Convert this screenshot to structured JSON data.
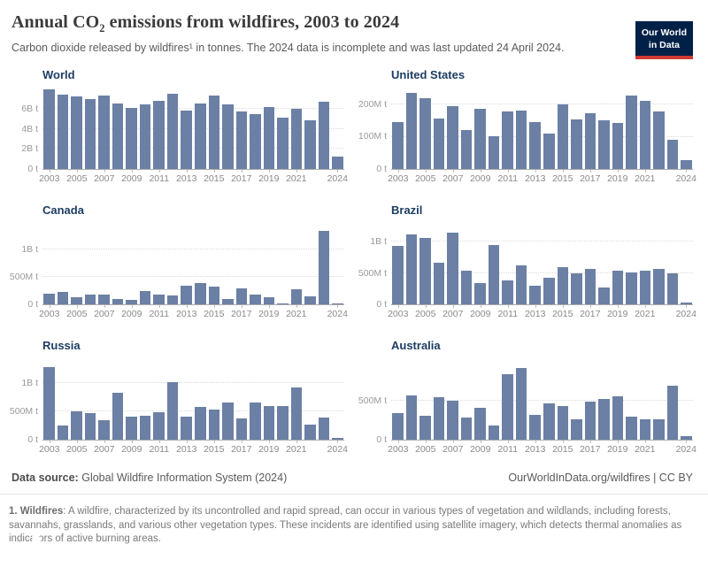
{
  "header": {
    "title_pre": "Annual CO",
    "title_sub": "2",
    "title_post": " emissions from wildfires, 2003 to 2024",
    "subtitle": "Carbon dioxide released by wildfires¹ in tonnes. The 2024 data is incomplete and was last updated 24 April 2024."
  },
  "logo": {
    "line1": "Our World",
    "line2": "in Data"
  },
  "colors": {
    "bar": "#6b80a4",
    "facet_title": "#1d3d63",
    "logo_navy": "#002147",
    "logo_red": "#cf3a34"
  },
  "chart_data": [
    {
      "type": "bar",
      "title": "World",
      "unit": "t",
      "x": [
        2003,
        2004,
        2005,
        2006,
        2007,
        2008,
        2009,
        2010,
        2011,
        2012,
        2013,
        2014,
        2015,
        2016,
        2017,
        2018,
        2019,
        2020,
        2021,
        2022,
        2023,
        2024
      ],
      "values_mt": [
        7900,
        7400,
        7250,
        6950,
        7350,
        6550,
        6100,
        6400,
        6800,
        7500,
        5850,
        6500,
        7300,
        6400,
        5700,
        5500,
        6200,
        5150,
        5950,
        4850,
        6650,
        1200
      ],
      "ylim_mt": 8100,
      "yticks": [
        {
          "label": "6B t",
          "value": 6000
        },
        {
          "label": "4B t",
          "value": 4000
        },
        {
          "label": "2B t",
          "value": 2000
        },
        {
          "label": "0 t",
          "value": 0
        }
      ],
      "xticks": [
        {
          "label": "2003",
          "index": 0
        },
        {
          "label": "2005",
          "index": 2
        },
        {
          "label": "2007",
          "index": 4
        },
        {
          "label": "2009",
          "index": 6
        },
        {
          "label": "2011",
          "index": 8
        },
        {
          "label": "2013",
          "index": 10
        },
        {
          "label": "2015",
          "index": 12
        },
        {
          "label": "2017",
          "index": 14
        },
        {
          "label": "2019",
          "index": 16
        },
        {
          "label": "2021",
          "index": 18
        },
        {
          "label": "2024",
          "index": 21
        }
      ]
    },
    {
      "type": "bar",
      "title": "United States",
      "unit": "t",
      "x": [
        2003,
        2004,
        2005,
        2006,
        2007,
        2008,
        2009,
        2010,
        2011,
        2012,
        2013,
        2014,
        2015,
        2016,
        2017,
        2018,
        2019,
        2020,
        2021,
        2022,
        2023,
        2024
      ],
      "values_mt": [
        145,
        235,
        220,
        155,
        195,
        120,
        185,
        100,
        177,
        182,
        146,
        110,
        201,
        153,
        173,
        150,
        143,
        226,
        210,
        177,
        90,
        28
      ],
      "ylim_mt": 252,
      "yticks": [
        {
          "label": "200M t",
          "value": 200
        },
        {
          "label": "100M t",
          "value": 100
        },
        {
          "label": "0 t",
          "value": 0
        }
      ],
      "xticks": [
        {
          "label": "2003",
          "index": 0
        },
        {
          "label": "2005",
          "index": 2
        },
        {
          "label": "2007",
          "index": 4
        },
        {
          "label": "2009",
          "index": 6
        },
        {
          "label": "2011",
          "index": 8
        },
        {
          "label": "2013",
          "index": 10
        },
        {
          "label": "2015",
          "index": 12
        },
        {
          "label": "2017",
          "index": 14
        },
        {
          "label": "2019",
          "index": 16
        },
        {
          "label": "2021",
          "index": 18
        },
        {
          "label": "2024",
          "index": 21
        }
      ]
    },
    {
      "type": "bar",
      "title": "Canada",
      "unit": "t",
      "x": [
        2003,
        2004,
        2005,
        2006,
        2007,
        2008,
        2009,
        2010,
        2011,
        2012,
        2013,
        2014,
        2015,
        2016,
        2017,
        2018,
        2019,
        2020,
        2021,
        2022,
        2023,
        2024
      ],
      "values_mt": [
        200,
        225,
        135,
        175,
        170,
        100,
        85,
        235,
        175,
        160,
        340,
        385,
        315,
        95,
        295,
        170,
        135,
        20,
        275,
        145,
        1330,
        15
      ],
      "ylim_mt": 1480,
      "yticks": [
        {
          "label": "1B t",
          "value": 1000
        },
        {
          "label": "500M t",
          "value": 500
        },
        {
          "label": "0 t",
          "value": 0
        }
      ],
      "xticks": [
        {
          "label": "2003",
          "index": 0
        },
        {
          "label": "2005",
          "index": 2
        },
        {
          "label": "2007",
          "index": 4
        },
        {
          "label": "2009",
          "index": 6
        },
        {
          "label": "2011",
          "index": 8
        },
        {
          "label": "2013",
          "index": 10
        },
        {
          "label": "2015",
          "index": 12
        },
        {
          "label": "2017",
          "index": 14
        },
        {
          "label": "2019",
          "index": 16
        },
        {
          "label": "2021",
          "index": 18
        },
        {
          "label": "2024",
          "index": 21
        }
      ]
    },
    {
      "type": "bar",
      "title": "Brazil",
      "unit": "t",
      "x": [
        2003,
        2004,
        2005,
        2006,
        2007,
        2008,
        2009,
        2010,
        2011,
        2012,
        2013,
        2014,
        2015,
        2016,
        2017,
        2018,
        2019,
        2020,
        2021,
        2022,
        2023,
        2024
      ],
      "values_mt": [
        930,
        1115,
        1055,
        660,
        1145,
        530,
        335,
        940,
        380,
        625,
        290,
        425,
        595,
        495,
        560,
        275,
        530,
        510,
        535,
        565,
        490,
        35
      ],
      "ylim_mt": 1300,
      "yticks": [
        {
          "label": "1B t",
          "value": 1000
        },
        {
          "label": "500M t",
          "value": 500
        },
        {
          "label": "0 t",
          "value": 0
        }
      ],
      "xticks": [
        {
          "label": "2003",
          "index": 0
        },
        {
          "label": "2005",
          "index": 2
        },
        {
          "label": "2007",
          "index": 4
        },
        {
          "label": "2009",
          "index": 6
        },
        {
          "label": "2011",
          "index": 8
        },
        {
          "label": "2013",
          "index": 10
        },
        {
          "label": "2015",
          "index": 12
        },
        {
          "label": "2017",
          "index": 14
        },
        {
          "label": "2019",
          "index": 16
        },
        {
          "label": "2021",
          "index": 18
        },
        {
          "label": "2024",
          "index": 21
        }
      ]
    },
    {
      "type": "bar",
      "title": "Russia",
      "unit": "t",
      "x": [
        2003,
        2004,
        2005,
        2006,
        2007,
        2008,
        2009,
        2010,
        2011,
        2012,
        2013,
        2014,
        2015,
        2016,
        2017,
        2018,
        2019,
        2020,
        2021,
        2022,
        2023,
        2024
      ],
      "values_mt": [
        1290,
        255,
        500,
        465,
        345,
        825,
        410,
        425,
        490,
        1010,
        400,
        575,
        535,
        665,
        370,
        655,
        590,
        600,
        920,
        265,
        390,
        25
      ],
      "ylim_mt": 1440,
      "yticks": [
        {
          "label": "1B t",
          "value": 1000
        },
        {
          "label": "500M t",
          "value": 500
        },
        {
          "label": "0 t",
          "value": 0
        }
      ],
      "xticks": [
        {
          "label": "2003",
          "index": 0
        },
        {
          "label": "2005",
          "index": 2
        },
        {
          "label": "2007",
          "index": 4
        },
        {
          "label": "2009",
          "index": 6
        },
        {
          "label": "2011",
          "index": 8
        },
        {
          "label": "2013",
          "index": 10
        },
        {
          "label": "2015",
          "index": 12
        },
        {
          "label": "2017",
          "index": 14
        },
        {
          "label": "2019",
          "index": 16
        },
        {
          "label": "2021",
          "index": 18
        },
        {
          "label": "2024",
          "index": 21
        }
      ]
    },
    {
      "type": "bar",
      "title": "Australia",
      "unit": "t",
      "x": [
        2003,
        2004,
        2005,
        2006,
        2007,
        2008,
        2009,
        2010,
        2011,
        2012,
        2013,
        2014,
        2015,
        2016,
        2017,
        2018,
        2019,
        2020,
        2021,
        2022,
        2023,
        2024
      ],
      "values_mt": [
        345,
        575,
        305,
        550,
        505,
        290,
        410,
        185,
        850,
        930,
        315,
        465,
        430,
        260,
        495,
        530,
        555,
        300,
        265,
        265,
        695,
        50
      ],
      "ylim_mt": 1050,
      "yticks": [
        {
          "label": "500M t",
          "value": 500
        },
        {
          "label": "0 t",
          "value": 0
        }
      ],
      "xticks": [
        {
          "label": "2003",
          "index": 0
        },
        {
          "label": "2005",
          "index": 2
        },
        {
          "label": "2007",
          "index": 4
        },
        {
          "label": "2009",
          "index": 6
        },
        {
          "label": "2011",
          "index": 8
        },
        {
          "label": "2013",
          "index": 10
        },
        {
          "label": "2015",
          "index": 12
        },
        {
          "label": "2017",
          "index": 14
        },
        {
          "label": "2019",
          "index": 16
        },
        {
          "label": "2021",
          "index": 18
        },
        {
          "label": "2024",
          "index": 21
        }
      ]
    }
  ],
  "footer": {
    "source_label": "Data source:",
    "source_value": "Global Wildfire Information System (2024)",
    "attribution": "OurWorldInData.org/wildfires | CC BY",
    "footnote_bold": "1. Wildfires",
    "footnote_rest": ": A wildfire, characterized by its uncontrolled and rapid spread, can occur in various types of vegetation and wildlands, including forests, savannahs, grasslands, and various other vegetation types. These incidents are identified using satellite imagery, which detects thermal anomalies as indicators of active burning areas."
  }
}
